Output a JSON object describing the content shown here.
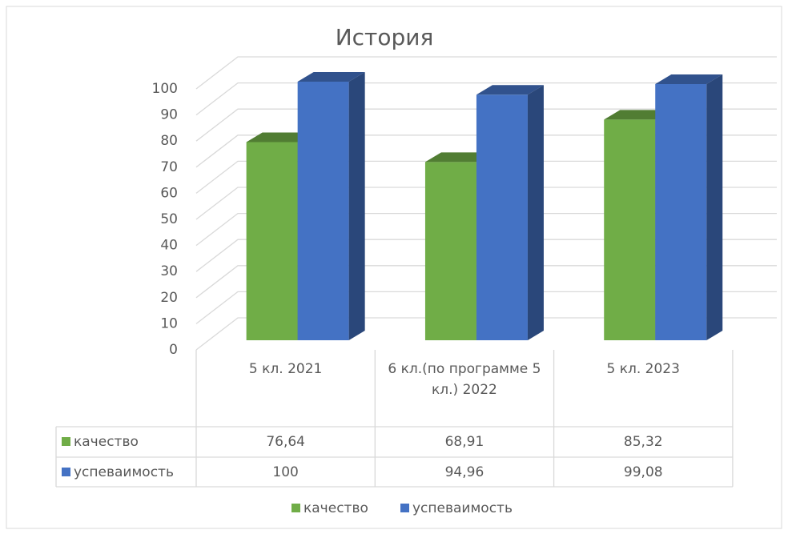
{
  "chart_data": {
    "type": "bar3d",
    "title": "История",
    "categories": [
      "5 кл.  2021",
      "6 кл.(по программе 5 кл.) 2022",
      "5 кл. 2023"
    ],
    "series": [
      {
        "name": "качество",
        "color": "#70ad47",
        "values": [
          76.64,
          68.91,
          85.32
        ],
        "value_labels": [
          "76,64",
          "68,91",
          "85,32"
        ]
      },
      {
        "name": "успеваимость",
        "color": "#4472c4",
        "values": [
          100,
          94.96,
          99.08
        ],
        "value_labels": [
          "100",
          "94,96",
          "99,08"
        ]
      }
    ],
    "ylim": [
      0,
      100
    ],
    "yticks": [
      0,
      10,
      20,
      30,
      40,
      50,
      60,
      70,
      80,
      90,
      100
    ],
    "grid": true,
    "legend": "bottom",
    "data_table": true
  }
}
